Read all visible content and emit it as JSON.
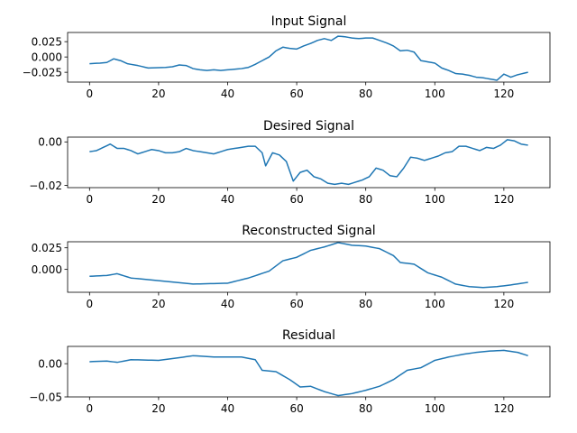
{
  "figure": {
    "line_color": "#1f77b4",
    "background": "#ffffff"
  },
  "chart_data": [
    {
      "type": "line",
      "title": "Input Signal",
      "xlim": [
        -6.35,
        133.35
      ],
      "ylim": [
        -0.041,
        0.04
      ],
      "xticks": [
        0,
        20,
        40,
        60,
        80,
        100,
        120
      ],
      "yticks": [
        {
          "v": 0.025,
          "label": "0.025"
        },
        {
          "v": 0.0,
          "label": "0.000"
        },
        {
          "v": -0.025,
          "label": "−0.025"
        }
      ],
      "x_step": 1,
      "keypoints": [
        [
          0,
          -0.011
        ],
        [
          3,
          -0.01
        ],
        [
          5,
          -0.009
        ],
        [
          7,
          -0.003
        ],
        [
          9,
          -0.006
        ],
        [
          11,
          -0.011
        ],
        [
          14,
          -0.014
        ],
        [
          17,
          -0.018
        ],
        [
          22,
          -0.017
        ],
        [
          24,
          -0.016
        ],
        [
          26,
          -0.013
        ],
        [
          28,
          -0.014
        ],
        [
          30,
          -0.019
        ],
        [
          32,
          -0.021
        ],
        [
          34,
          -0.022
        ],
        [
          36,
          -0.021
        ],
        [
          38,
          -0.022
        ],
        [
          40,
          -0.021
        ],
        [
          42,
          -0.02
        ],
        [
          44,
          -0.019
        ],
        [
          46,
          -0.017
        ],
        [
          48,
          -0.012
        ],
        [
          50,
          -0.006
        ],
        [
          52,
          0.0
        ],
        [
          54,
          0.01
        ],
        [
          56,
          0.016
        ],
        [
          58,
          0.014
        ],
        [
          60,
          0.013
        ],
        [
          62,
          0.018
        ],
        [
          64,
          0.022
        ],
        [
          66,
          0.027
        ],
        [
          68,
          0.03
        ],
        [
          70,
          0.027
        ],
        [
          72,
          0.034
        ],
        [
          74,
          0.033
        ],
        [
          76,
          0.031
        ],
        [
          78,
          0.03
        ],
        [
          80,
          0.031
        ],
        [
          82,
          0.031
        ],
        [
          84,
          0.027
        ],
        [
          86,
          0.023
        ],
        [
          88,
          0.018
        ],
        [
          90,
          0.01
        ],
        [
          92,
          0.011
        ],
        [
          94,
          0.008
        ],
        [
          96,
          -0.006
        ],
        [
          98,
          -0.008
        ],
        [
          100,
          -0.01
        ],
        [
          102,
          -0.018
        ],
        [
          104,
          -0.022
        ],
        [
          106,
          -0.027
        ],
        [
          108,
          -0.028
        ],
        [
          110,
          -0.03
        ],
        [
          112,
          -0.033
        ],
        [
          114,
          -0.034
        ],
        [
          116,
          -0.036
        ],
        [
          118,
          -0.038
        ],
        [
          120,
          -0.028
        ],
        [
          122,
          -0.033
        ],
        [
          124,
          -0.029
        ],
        [
          127,
          -0.025
        ]
      ]
    },
    {
      "type": "line",
      "title": "Desired Signal",
      "xlim": [
        -6.35,
        133.35
      ],
      "ylim": [
        -0.021,
        0.0022
      ],
      "xticks": [
        0,
        20,
        40,
        60,
        80,
        100,
        120
      ],
      "yticks": [
        {
          "v": 0.0,
          "label": "0.00"
        },
        {
          "v": -0.02,
          "label": "−0.02"
        }
      ],
      "x_step": 1,
      "keypoints": [
        [
          0,
          -0.0045
        ],
        [
          2,
          -0.004
        ],
        [
          4,
          -0.0025
        ],
        [
          6,
          -0.001
        ],
        [
          8,
          -0.003
        ],
        [
          10,
          -0.003
        ],
        [
          12,
          -0.004
        ],
        [
          14,
          -0.0055
        ],
        [
          16,
          -0.0045
        ],
        [
          18,
          -0.0035
        ],
        [
          20,
          -0.004
        ],
        [
          22,
          -0.005
        ],
        [
          24,
          -0.005
        ],
        [
          26,
          -0.0045
        ],
        [
          28,
          -0.003
        ],
        [
          30,
          -0.004
        ],
        [
          32,
          -0.0045
        ],
        [
          34,
          -0.005
        ],
        [
          36,
          -0.0055
        ],
        [
          38,
          -0.0045
        ],
        [
          40,
          -0.0035
        ],
        [
          42,
          -0.003
        ],
        [
          44,
          -0.0025
        ],
        [
          46,
          -0.002
        ],
        [
          48,
          -0.002
        ],
        [
          50,
          -0.005
        ],
        [
          51,
          -0.011
        ],
        [
          53,
          -0.005
        ],
        [
          55,
          -0.006
        ],
        [
          57,
          -0.009
        ],
        [
          59,
          -0.018
        ],
        [
          61,
          -0.014
        ],
        [
          63,
          -0.013
        ],
        [
          65,
          -0.016
        ],
        [
          67,
          -0.017
        ],
        [
          69,
          -0.019
        ],
        [
          71,
          -0.0195
        ],
        [
          73,
          -0.019
        ],
        [
          75,
          -0.0195
        ],
        [
          77,
          -0.0185
        ],
        [
          79,
          -0.0175
        ],
        [
          81,
          -0.016
        ],
        [
          83,
          -0.012
        ],
        [
          85,
          -0.013
        ],
        [
          87,
          -0.0155
        ],
        [
          89,
          -0.016
        ],
        [
          91,
          -0.012
        ],
        [
          93,
          -0.007
        ],
        [
          95,
          -0.0075
        ],
        [
          97,
          -0.0085
        ],
        [
          99,
          -0.0075
        ],
        [
          101,
          -0.0065
        ],
        [
          103,
          -0.005
        ],
        [
          105,
          -0.0045
        ],
        [
          107,
          -0.002
        ],
        [
          109,
          -0.002
        ],
        [
          111,
          -0.003
        ],
        [
          113,
          -0.004
        ],
        [
          115,
          -0.0025
        ],
        [
          117,
          -0.003
        ],
        [
          119,
          -0.0015
        ],
        [
          121,
          0.001
        ],
        [
          123,
          0.0005
        ],
        [
          125,
          -0.001
        ],
        [
          127,
          -0.0015
        ]
      ]
    },
    {
      "type": "line",
      "title": "Reconstructed Signal",
      "xlim": [
        -6.35,
        133.35
      ],
      "ylim": [
        -0.0265,
        0.032
      ],
      "xticks": [
        0,
        20,
        40,
        60,
        80,
        100,
        120
      ],
      "yticks": [
        {
          "v": 0.025,
          "label": "0.025"
        },
        {
          "v": 0.0,
          "label": "0.000"
        }
      ],
      "x_step": 1,
      "keypoints": [
        [
          0,
          -0.008
        ],
        [
          5,
          -0.007
        ],
        [
          8,
          -0.005
        ],
        [
          12,
          -0.01
        ],
        [
          20,
          -0.013
        ],
        [
          30,
          -0.017
        ],
        [
          40,
          -0.016
        ],
        [
          46,
          -0.01
        ],
        [
          52,
          -0.002
        ],
        [
          56,
          0.01
        ],
        [
          60,
          0.014
        ],
        [
          64,
          0.022
        ],
        [
          68,
          0.026
        ],
        [
          72,
          0.031
        ],
        [
          76,
          0.028
        ],
        [
          80,
          0.027
        ],
        [
          84,
          0.024
        ],
        [
          88,
          0.016
        ],
        [
          90,
          0.008
        ],
        [
          94,
          0.006
        ],
        [
          98,
          -0.004
        ],
        [
          102,
          -0.009
        ],
        [
          106,
          -0.017
        ],
        [
          110,
          -0.02
        ],
        [
          114,
          -0.021
        ],
        [
          118,
          -0.02
        ],
        [
          122,
          -0.018
        ],
        [
          127,
          -0.015
        ]
      ]
    },
    {
      "type": "line",
      "title": "Residual",
      "xlim": [
        -6.35,
        133.35
      ],
      "ylim": [
        -0.05,
        0.026
      ],
      "xticks": [
        0,
        20,
        40,
        60,
        80,
        100,
        120
      ],
      "yticks": [
        {
          "v": 0.0,
          "label": "0.00"
        },
        {
          "v": -0.05,
          "label": "−0.05"
        }
      ],
      "x_step": 1,
      "keypoints": [
        [
          0,
          0.003
        ],
        [
          5,
          0.004
        ],
        [
          8,
          0.002
        ],
        [
          12,
          0.006
        ],
        [
          20,
          0.005
        ],
        [
          26,
          0.009
        ],
        [
          30,
          0.012
        ],
        [
          36,
          0.01
        ],
        [
          44,
          0.01
        ],
        [
          48,
          0.006
        ],
        [
          50,
          -0.01
        ],
        [
          54,
          -0.012
        ],
        [
          58,
          -0.024
        ],
        [
          61,
          -0.035
        ],
        [
          64,
          -0.034
        ],
        [
          68,
          -0.042
        ],
        [
          72,
          -0.048
        ],
        [
          76,
          -0.045
        ],
        [
          80,
          -0.04
        ],
        [
          84,
          -0.034
        ],
        [
          88,
          -0.024
        ],
        [
          92,
          -0.01
        ],
        [
          96,
          -0.006
        ],
        [
          100,
          0.005
        ],
        [
          104,
          0.01
        ],
        [
          108,
          0.014
        ],
        [
          112,
          0.017
        ],
        [
          116,
          0.019
        ],
        [
          120,
          0.02
        ],
        [
          124,
          0.017
        ],
        [
          127,
          0.012
        ]
      ]
    }
  ]
}
